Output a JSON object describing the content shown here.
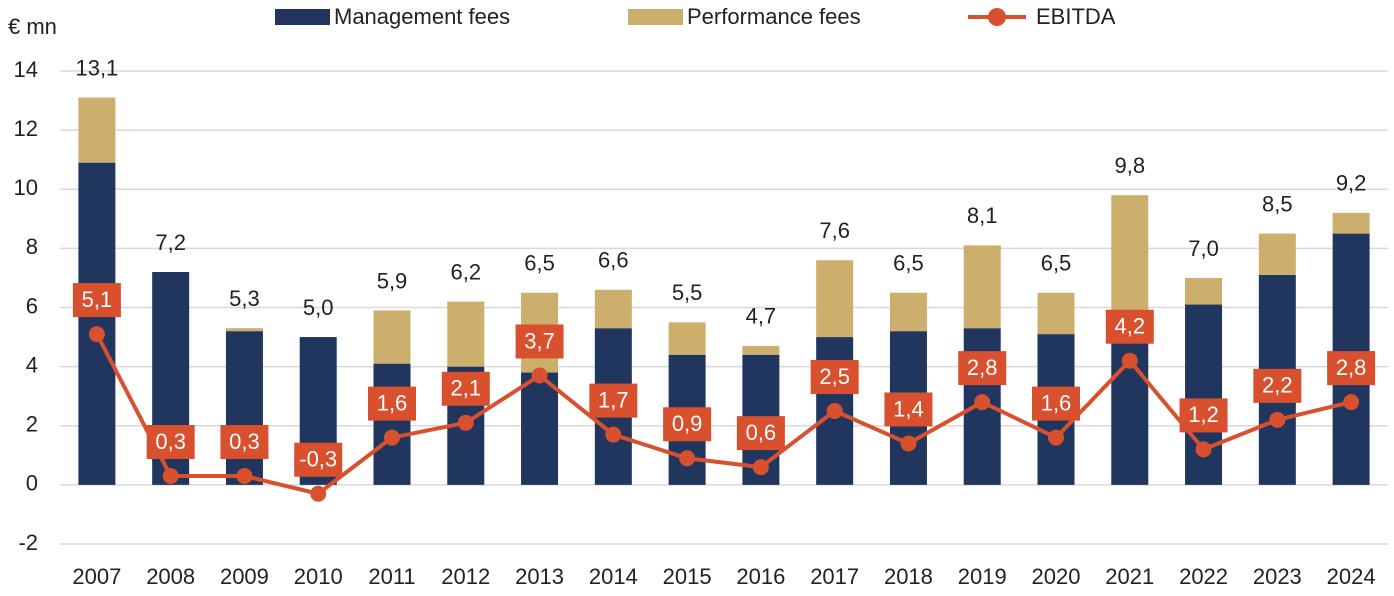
{
  "chart_data": {
    "type": "bar-line",
    "y_unit_label": "€ mn",
    "categories": [
      "2007",
      "2008",
      "2009",
      "2010",
      "2011",
      "2012",
      "2013",
      "2014",
      "2015",
      "2016",
      "2017",
      "2018",
      "2019",
      "2020",
      "2021",
      "2022",
      "2023",
      "2024"
    ],
    "series": [
      {
        "name": "Management fees",
        "color": "#21365f",
        "kind": "bar",
        "values": [
          10.9,
          7.2,
          5.2,
          5.0,
          4.1,
          4.0,
          3.8,
          5.3,
          4.4,
          4.4,
          5.0,
          5.2,
          5.3,
          5.1,
          5.0,
          6.1,
          7.1,
          8.5
        ]
      },
      {
        "name": "Performance fees",
        "color": "#ccaf6c",
        "kind": "bar",
        "values": [
          2.2,
          0,
          0.1,
          0,
          1.8,
          2.2,
          2.7,
          1.3,
          1.1,
          0.3,
          2.6,
          1.3,
          2.8,
          1.4,
          4.8,
          0.9,
          1.4,
          0.7
        ]
      },
      {
        "name": "EBITDA",
        "color": "#d9502e",
        "kind": "line",
        "values": [
          5.1,
          0.3,
          0.3,
          -0.3,
          1.6,
          2.1,
          3.7,
          1.7,
          0.9,
          0.6,
          2.5,
          1.4,
          2.8,
          1.6,
          4.2,
          1.2,
          2.2,
          2.8
        ],
        "value_labels": [
          "5,1",
          "0,3",
          "0,3",
          "-0,3",
          "1,6",
          "2,1",
          "3,7",
          "1,7",
          "0,9",
          "0,6",
          "2,5",
          "1,4",
          "2,8",
          "1,6",
          "4,2",
          "1,2",
          "2,2",
          "2,8"
        ]
      }
    ],
    "totals": [
      13.1,
      7.2,
      5.3,
      5.0,
      5.9,
      6.2,
      6.5,
      6.6,
      5.5,
      4.7,
      7.6,
      6.5,
      8.1,
      6.5,
      9.8,
      7.0,
      8.5,
      9.2
    ],
    "total_labels": [
      "13,1",
      "7,2",
      "5,3",
      "5,0",
      "5,9",
      "6,2",
      "6,5",
      "6,6",
      "5,5",
      "4,7",
      "7,6",
      "6,5",
      "8,1",
      "6,5",
      "9,8",
      "7,0",
      "8,5",
      "9,2"
    ],
    "ylim": [
      -2,
      14
    ],
    "yticks": [
      -2,
      0,
      2,
      4,
      6,
      8,
      10,
      12,
      14
    ],
    "grid": true,
    "legend": "top"
  }
}
